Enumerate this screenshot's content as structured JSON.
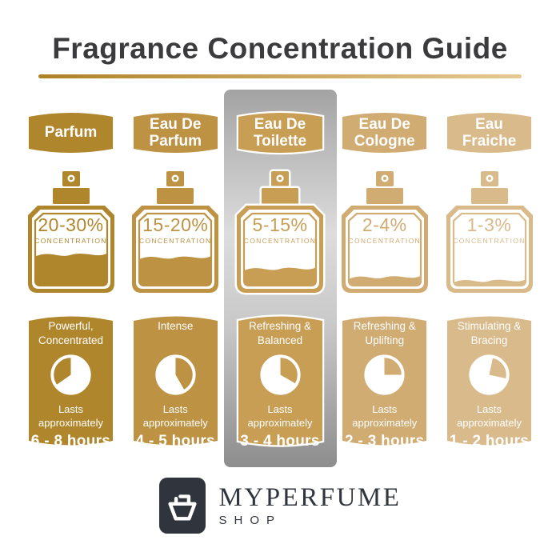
{
  "title": "Fragrance Concentration Guide",
  "labels": {
    "concentration": "CONCENTRATION",
    "lasts": "Lasts\napproximately"
  },
  "theme": {
    "title_color": "#3b3b3d",
    "underline_from": "#ae8126",
    "underline_to": "#e6c992",
    "band_top": "#a3a3a3",
    "band_mid": "#dcdcdc",
    "band_bottom": "#8d8d8d",
    "logo_bg": "#30343d",
    "brand_color": "#31353e"
  },
  "columns": [
    {
      "name": "Parfum",
      "color": "#b0862c",
      "concentration": "20-30%",
      "fill_percent": 46,
      "character": "Powerful,\nConcentrated",
      "duration": "6 - 8 hours",
      "clock": {
        "start": 235,
        "end": 360
      },
      "highlighted": false
    },
    {
      "name": "Eau De\nParfum",
      "color": "#bd9243",
      "concentration": "15-20%",
      "fill_percent": 42,
      "character": "Intense",
      "duration": "4 - 5 hours",
      "clock": {
        "start": 0,
        "end": 150
      },
      "highlighted": false
    },
    {
      "name": "Eau De\nToilette",
      "color": "#c89e55",
      "concentration": "5-15%",
      "fill_percent": 26,
      "character": "Refreshing &\nBalanced",
      "duration": "3 - 4 hours",
      "clock": {
        "start": 0,
        "end": 120
      },
      "highlighted": true
    },
    {
      "name": "Eau De\nCologne",
      "color": "#d0ab72",
      "concentration": "2-4%",
      "fill_percent": 14,
      "character": "Refreshing &\nUplifting",
      "duration": "2 - 3 hours",
      "clock": {
        "start": 0,
        "end": 90
      },
      "highlighted": false
    },
    {
      "name": "Eau\nFraiche",
      "color": "#d9ba8a",
      "concentration": "1-3%",
      "fill_percent": 9,
      "character": "Stimulating &\nBracing",
      "duration": "1 - 2 hours",
      "clock": {
        "start": 12,
        "end": 102
      },
      "highlighted": false
    }
  ],
  "footer": {
    "brand": "MYPERFUME",
    "sub": "SHOP"
  }
}
